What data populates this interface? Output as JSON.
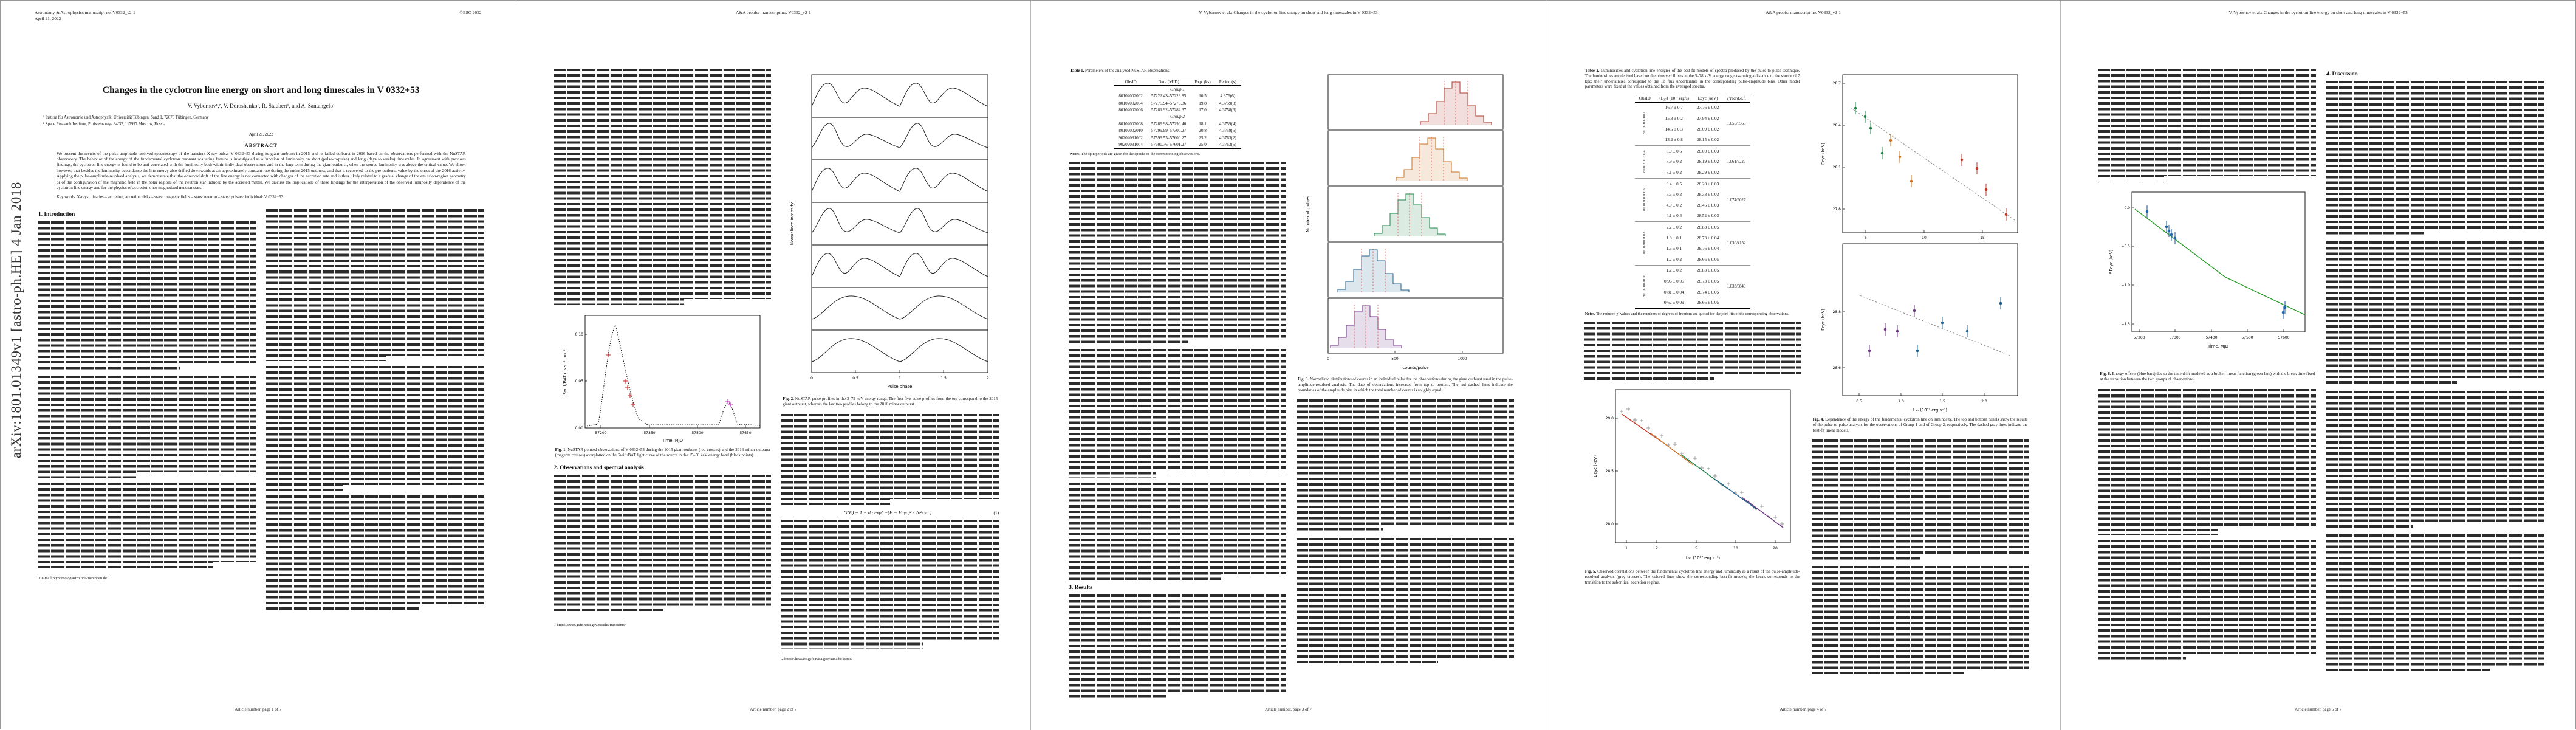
{
  "doc": {
    "arxiv_stamp": "arXiv:1801.01349v1  [astro-ph.HE]  4 Jan 2018"
  },
  "headers": {
    "manuscript": "Astronomy & Astrophysics manuscript no. V0332_v2-1",
    "date": "April 21, 2022",
    "eso": "©ESO 2022",
    "proofs": "A&A proofs: manuscript no. V0332_v2-1",
    "running": "V. Vybornov et al.: Changes in the cyclotron line energy on short and long timescales in V 0332+53"
  },
  "footers": {
    "p1": "Article number, page 1 of 7",
    "p2": "Article number, page 2 of 7",
    "p3": "Article number, page 3 of 7",
    "p4": "Article number, page 4 of 7",
    "p5": "Article number, page 5 of 7"
  },
  "titleblock": {
    "title": "Changes in the cyclotron line energy on short and long timescales in V 0332+53",
    "authors": "V. Vybornov¹,², V. Doroshenko¹, R. Staubert¹, and A. Santangelo¹",
    "affil1": "¹ Institut für Astronomie und Astrophysik, Universität Tübingen, Sand 1, 72076 Tübingen, Germany",
    "affil2": "² Space Research Institute, Profsoyuznaya 84/32, 117997 Moscow, Russia",
    "dateline": "April 21, 2022",
    "abstract_label": "ABSTRACT",
    "abstract": "We present the results of the pulse-amplitude-resolved spectroscopy of the transient X-ray pulsar V 0332+53 during its giant outburst in 2015 and its failed outburst in 2016 based on the observations performed with the NuSTAR observatory. The behavior of the energy of the fundamental cyclotron resonant scattering feature is investigated as a function of luminosity on short (pulse-to-pulse) and long (days to weeks) timescales. In agreement with previous findings, the cyclotron line energy is found to be anti-correlated with the luminosity both within individual observations and in the long term during the giant outburst, when the source luminosity was above the critical value. We show, however, that besides the luminosity dependence the line energy also drifted downwards at an approximately constant rate during the entire 2015 outburst, and that it recovered to the pre-outburst value by the onset of the 2016 activity. Applying the pulse-amplitude-resolved analysis, we demonstrate that the observed drift of the line energy is not connected with changes of the accretion rate and is thus likely related to a gradual change of the emission-region geometry or of the configuration of the magnetic field in the polar regions of the neutron star induced by the accreted matter. We discuss the implications of these findings for the interpretation of the observed luminosity dependence of the cyclotron line energy and for the physics of accretion onto magnetized neutron stars.",
    "keywords": "Key words. X-rays: binaries – accretion, accretion disks – stars: magnetic fields – stars: neutron – stars: pulsars: individual: V 0332+53"
  },
  "sections": {
    "s1": "1. Introduction",
    "s2": "2. Observations and spectral analysis",
    "s3": "3. Results",
    "s4": "4. Discussion"
  },
  "equations": {
    "eq1": "G(E) = 1 − d · exp( −(E − Ecyc)² / 2σ²cyc )",
    "eq1_no": "(1)"
  },
  "footnotes": {
    "p1": "⋆ e-mail: vybornov@astro.uni-tuebingen.de",
    "p2a": "1  https://swift.gsfc.nasa.gov/results/transients/",
    "p2b": "2  https://heasarc.gsfc.nasa.gov/xanadu/xspec/"
  },
  "table1": {
    "cap_lead": "Table 1.",
    "cap_text": "Parameters of the analyzed NuSTAR observations.",
    "headers": [
      "ObsID",
      "Date (MJD)",
      "Exp. (ks)",
      "Period (s)"
    ],
    "groups": [
      {
        "label": "Group 1",
        "rows": [
          [
            "80102002002",
            "57222.43–57223.85",
            "10.5",
            "4.376(6)"
          ],
          [
            "80102002004",
            "57275.94–57276.36",
            "19.8",
            "4.3759(8)"
          ],
          [
            "80102002006",
            "57281.92–57282.37",
            "17.0",
            "4.3758(6)"
          ]
        ]
      },
      {
        "label": "Group 2",
        "rows": [
          [
            "80102002008",
            "57289.98–57290.40",
            "18.1",
            "4.3759(4)"
          ],
          [
            "80102002010",
            "57299.99–57300.27",
            "20.8",
            "4.3759(6)"
          ],
          [
            "90202031002",
            "57599.55–57600.27",
            "25.2",
            "4.3763(2)"
          ],
          [
            "90202031004",
            "57600.76–57601.27",
            "25.0",
            "4.3763(5)"
          ]
        ]
      }
    ],
    "note_lead": "Notes.",
    "note": "The spin periods are given for the epochs of the corresponding observations."
  },
  "table2": {
    "cap_lead": "Table 2.",
    "cap_text": "Luminosities and cyclotron line energies of the best-fit models of spectra produced by the pulse-to-pulse technique. The luminosities are derived based on the observed fluxes in the 5–78 keV energy range assuming a distance to the source of 7 kpc; their uncertainties correspond to the 1σ flux uncertainties in the corresponding pulse-amplitude bins. Other model parameters were fixed at the values obtained from the averaged spectra.",
    "headers": [
      "ObsID",
      "⟨L₃₇⟩ (10³⁷ erg/s)",
      "Ecyc (keV)",
      "χ²red/d.o.f."
    ],
    "groups": [
      {
        "obsid": "80102002002",
        "chi2": "1.055/5565",
        "rows": [
          [
            "16.7 ± 0.7",
            "27.76 ± 0.02"
          ],
          [
            "15.3 ± 0.2",
            "27.94 ± 0.02"
          ],
          [
            "14.5 ± 0.3",
            "28.09 ± 0.02"
          ],
          [
            "13.2 ± 0.8",
            "28.15 ± 0.02"
          ]
        ]
      },
      {
        "obsid": "80102002004",
        "chi2": "1.061/5227",
        "rows": [
          [
            "8.9 ± 0.6",
            "28.00 ± 0.03"
          ],
          [
            "7.9 ± 0.2",
            "28.19 ± 0.02"
          ],
          [
            "7.1 ± 0.2",
            "28.29 ± 0.02"
          ]
        ]
      },
      {
        "obsid": "80102002006",
        "chi2": "1.074/5027",
        "rows": [
          [
            "6.4 ± 0.5",
            "28.20 ± 0.03"
          ],
          [
            "5.5 ± 0.2",
            "28.38 ± 0.03"
          ],
          [
            "4.9 ± 0.2",
            "28.46 ± 0.03"
          ],
          [
            "4.1 ± 0.4",
            "28.52 ± 0.03"
          ]
        ]
      },
      {
        "obsid": "80102002008",
        "chi2": "1.036/4132",
        "rows": [
          [
            "2.2 ± 0.2",
            "28.83 ± 0.05"
          ],
          [
            "1.8 ± 0.1",
            "28.73 ± 0.04"
          ],
          [
            "1.5 ± 0.1",
            "28.76 ± 0.04"
          ],
          [
            "1.2 ± 0.2",
            "28.66 ± 0.05"
          ]
        ]
      },
      {
        "obsid": "80102002010",
        "chi2": "1.033/3849",
        "rows": [
          [
            "1.2 ± 0.2",
            "28.83 ± 0.05"
          ],
          [
            "0.96 ± 0.05",
            "28.73 ± 0.05"
          ],
          [
            "0.81 ± 0.04",
            "28.74 ± 0.05"
          ],
          [
            "0.62 ± 0.09",
            "28.66 ± 0.05"
          ]
        ]
      }
    ],
    "note_lead": "Notes.",
    "note": "The reduced χ² values and the numbers of degrees of freedom are quoted for the joint fits of the corresponding observations."
  },
  "figures": {
    "fig1": {
      "cap_lead": "Fig. 1.",
      "cap_text": "NuSTAR pointed observations of V 0332+53 during the 2015 giant outburst (red crosses) and the 2016 minor outburst (magenta crosses) overplotted on the Swift/BAT light curve of the source in the 15–50 keV energy band (black points).",
      "xlabel": "Time, MJD",
      "ylabel": "Swift/BAT cts s⁻¹ cm⁻²",
      "xticks": [
        "57200",
        "57350",
        "57500",
        "57650"
      ],
      "yticks": [
        "0.00",
        "0.05",
        "0.10"
      ]
    },
    "fig2": {
      "cap_lead": "Fig. 2.",
      "cap_text": "NuSTAR pulse profiles in the 3–79 keV energy range. The first five pulse profiles from the top correspond to the 2015 giant outburst, whereas the last two profiles belong to the 2016 minor outburst.",
      "xlabel": "Pulse phase",
      "ylabel": "Normalized intensity",
      "xticks": [
        "0",
        "0.5",
        "1",
        "1.5",
        "2"
      ]
    },
    "fig3": {
      "cap_lead": "Fig. 3.",
      "cap_text": "Normalized distributions of counts in an individual pulse for the observations during the giant outburst used in the pulse-amplitude-resolved analysis. The date of observations increases from top to bottom. The red dashed lines indicate the boundaries of the amplitude bins in which the total number of counts is roughly equal.",
      "xlabel": "counts/pulse",
      "ylabel": "Number of pulses",
      "xticks": [
        "0",
        "500",
        "1000"
      ]
    },
    "fig4": {
      "cap_lead": "Fig. 4.",
      "cap_text": "Dependence of the energy of the fundamental cyclotron line on luminosity. The top and bottom panels show the results of the pulse-to-pulse analysis for the observations of Group 1 and of Group 2, respectively. The dashed gray lines indicate the best-fit linear models.",
      "xlabel": "L₃₇ (10³⁷ erg s⁻¹)",
      "ylabel": "Ecyc (keV)",
      "xticks_top": [
        "5",
        "10",
        "15"
      ],
      "yticks_top": [
        "27.8",
        "28.1",
        "28.4",
        "28.7"
      ],
      "xticks_bot": [
        "0.5",
        "1.0",
        "1.5",
        "2.0"
      ],
      "yticks_bot": [
        "28.6",
        "28.8"
      ]
    },
    "fig5": {
      "cap_lead": "Fig. 5.",
      "cap_text": "Observed correlations between the fundamental cyclotron line energy and luminosity as a result of the pulse-amplitude-resolved analysis (gray crosses). The colored lines show the corresponding best-fit models; the break corresponds to the transition to the subcritical accretion regime.",
      "xlabel": "L₃₇ (10³⁷ erg s⁻¹)",
      "ylabel": "Ecyc (keV)",
      "xticks": [
        "1",
        "2",
        "5",
        "10",
        "20"
      ],
      "yticks": [
        "28.0",
        "28.5",
        "29.0"
      ]
    },
    "fig6": {
      "cap_lead": "Fig. 6.",
      "cap_text": "Energy offsets (blue bars) due to the time drift modeled as a broken linear function (green line) with the break time fixed at the transition between the two groups of observations.",
      "xlabel": "Time, MJD",
      "ylabel": "ΔEcyc (keV)",
      "xticks": [
        "57200",
        "57300",
        "57400",
        "57500",
        "57600"
      ],
      "yticks": [
        "0.0",
        "−0.5",
        "−1.0",
        "−1.5"
      ]
    }
  }
}
